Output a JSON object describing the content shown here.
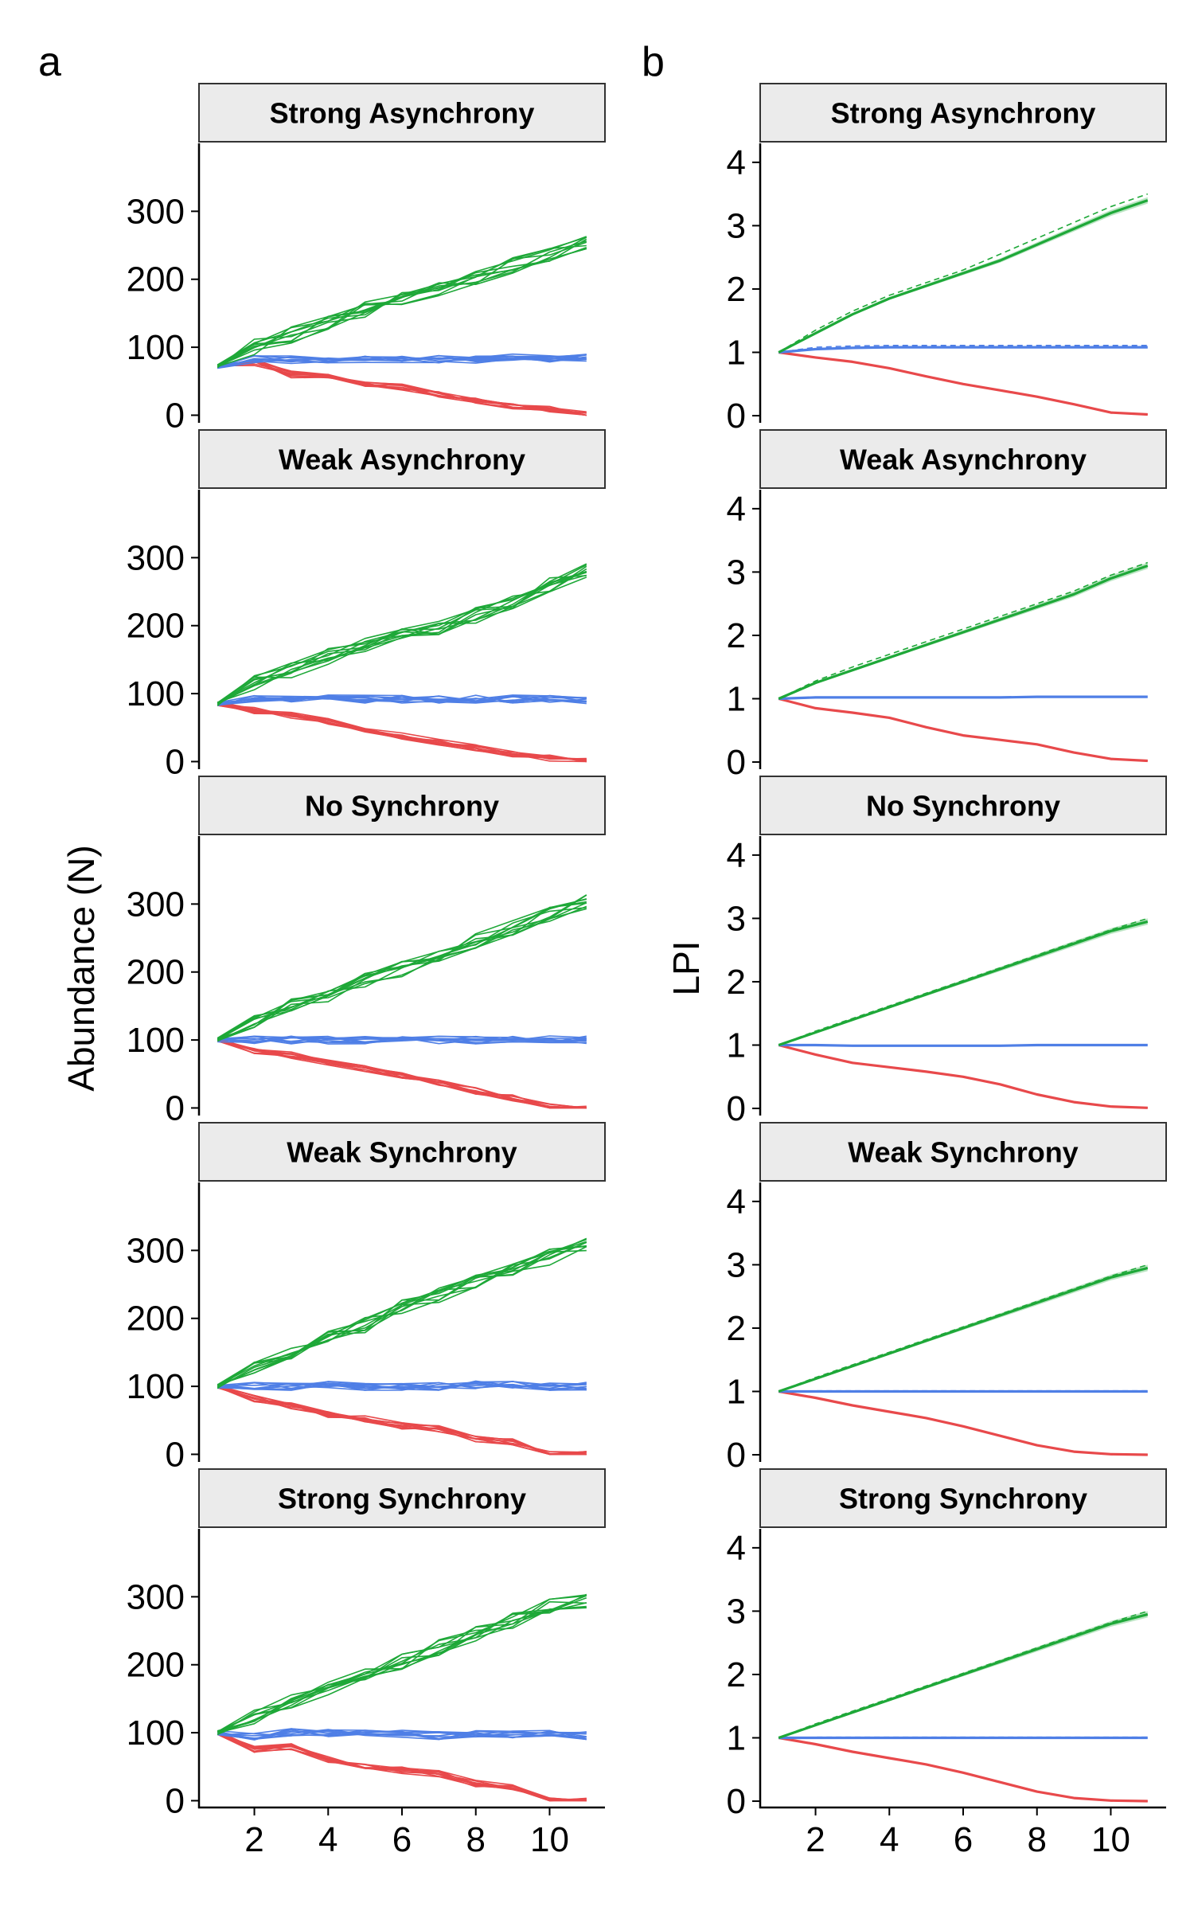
{
  "figure": {
    "panel_a_letter": "a",
    "panel_b_letter": "b",
    "ylabel_a": "Abundance (N)",
    "ylabel_b": "LPI"
  },
  "colors": {
    "decline": "#E8494B",
    "stable": "#4F7FE6",
    "increase": "#1EA838",
    "strip_bg": "#EBEBEB"
  },
  "facets": [
    "Strong Asynchrony",
    "Weak Asynchrony",
    "No Synchrony",
    "Weak Synchrony",
    "Strong Synchrony"
  ],
  "chart_data": [
    {
      "panel": "a",
      "type": "line",
      "ylabel": "Abundance (N)",
      "xlim": [
        0.5,
        11.5
      ],
      "ylim": [
        -10,
        400
      ],
      "xticks": [
        2,
        4,
        6,
        8,
        10
      ],
      "yticks": [
        0,
        100,
        200,
        300
      ],
      "x": [
        1,
        2,
        3,
        4,
        5,
        6,
        7,
        8,
        9,
        10,
        11
      ],
      "replicates_per_group": 10,
      "facets": [
        {
          "title": "Strong Asynchrony",
          "series": [
            {
              "group": "decline",
              "mean": [
                72,
                78,
                60,
                58,
                45,
                42,
                30,
                22,
                12,
                8,
                0
              ]
            },
            {
              "group": "stable",
              "mean": [
                72,
                82,
                82,
                82,
                82,
                82,
                82,
                82,
                84,
                84,
                84
              ]
            },
            {
              "group": "increase",
              "mean": [
                72,
                100,
                118,
                138,
                155,
                170,
                185,
                200,
                220,
                238,
                255
              ]
            }
          ]
        },
        {
          "title": "Weak Asynchrony",
          "series": [
            {
              "group": "decline",
              "mean": [
                85,
                75,
                68,
                60,
                48,
                38,
                28,
                20,
                12,
                5,
                0
              ]
            },
            {
              "group": "stable",
              "mean": [
                85,
                92,
                90,
                92,
                92,
                92,
                92,
                92,
                92,
                92,
                90
              ]
            },
            {
              "group": "increase",
              "mean": [
                85,
                115,
                135,
                155,
                170,
                185,
                198,
                215,
                235,
                260,
                280
              ]
            }
          ]
        },
        {
          "title": "No Synchrony",
          "series": [
            {
              "group": "decline",
              "mean": [
                100,
                85,
                78,
                68,
                58,
                48,
                38,
                25,
                15,
                2,
                0
              ]
            },
            {
              "group": "stable",
              "mean": [
                100,
                100,
                100,
                100,
                100,
                100,
                100,
                100,
                102,
                100,
                100
              ]
            },
            {
              "group": "increase",
              "mean": [
                100,
                130,
                150,
                168,
                188,
                205,
                222,
                245,
                265,
                285,
                305
              ]
            }
          ]
        },
        {
          "title": "Weak Synchrony",
          "series": [
            {
              "group": "decline",
              "mean": [
                100,
                82,
                72,
                58,
                52,
                42,
                38,
                22,
                18,
                0,
                0
              ]
            },
            {
              "group": "stable",
              "mean": [
                100,
                100,
                100,
                102,
                100,
                100,
                100,
                102,
                102,
                100,
                100
              ]
            },
            {
              "group": "increase",
              "mean": [
                100,
                130,
                150,
                170,
                190,
                215,
                235,
                255,
                275,
                290,
                310
              ]
            }
          ]
        },
        {
          "title": "Strong Synchrony",
          "series": [
            {
              "group": "decline",
              "mean": [
                100,
                75,
                80,
                60,
                50,
                45,
                40,
                25,
                20,
                0,
                0
              ]
            },
            {
              "group": "stable",
              "mean": [
                100,
                95,
                100,
                100,
                98,
                98,
                96,
                98,
                98,
                98,
                96
              ]
            },
            {
              "group": "increase",
              "mean": [
                100,
                125,
                145,
                165,
                185,
                205,
                225,
                245,
                265,
                285,
                295
              ]
            }
          ]
        }
      ]
    },
    {
      "panel": "b",
      "type": "line",
      "ylabel": "LPI",
      "xlim": [
        0.5,
        11.5
      ],
      "ylim": [
        -0.1,
        4.3
      ],
      "xticks": [
        2,
        4,
        6,
        8,
        10
      ],
      "yticks": [
        0,
        1,
        2,
        3,
        4
      ],
      "x": [
        1,
        2,
        3,
        4,
        5,
        6,
        7,
        8,
        9,
        10,
        11
      ],
      "facets": [
        {
          "title": "Strong Asynchrony",
          "series": [
            {
              "group": "decline",
              "lpi": [
                1,
                0.92,
                0.85,
                0.75,
                0.62,
                0.5,
                0.4,
                0.3,
                0.18,
                0.05,
                0.02
              ],
              "expected": [
                1,
                0.92,
                0.85,
                0.75,
                0.62,
                0.5,
                0.4,
                0.3,
                0.18,
                0.05,
                0.02
              ]
            },
            {
              "group": "stable",
              "lpi": [
                1,
                1.05,
                1.07,
                1.08,
                1.08,
                1.08,
                1.08,
                1.08,
                1.08,
                1.08,
                1.08
              ],
              "expected": [
                1,
                1.08,
                1.1,
                1.11,
                1.11,
                1.11,
                1.11,
                1.11,
                1.11,
                1.11,
                1.11
              ]
            },
            {
              "group": "increase",
              "lpi": [
                1,
                1.3,
                1.6,
                1.85,
                2.05,
                2.25,
                2.45,
                2.7,
                2.95,
                3.2,
                3.4
              ],
              "expected": [
                1,
                1.35,
                1.65,
                1.9,
                2.1,
                2.3,
                2.55,
                2.8,
                3.05,
                3.3,
                3.5
              ]
            }
          ]
        },
        {
          "title": "Weak Asynchrony",
          "series": [
            {
              "group": "decline",
              "lpi": [
                1,
                0.85,
                0.78,
                0.7,
                0.55,
                0.42,
                0.35,
                0.28,
                0.15,
                0.05,
                0.02
              ],
              "expected": [
                1,
                0.85,
                0.78,
                0.7,
                0.55,
                0.42,
                0.35,
                0.28,
                0.15,
                0.05,
                0.02
              ]
            },
            {
              "group": "stable",
              "lpi": [
                1,
                1.02,
                1.02,
                1.02,
                1.02,
                1.02,
                1.02,
                1.03,
                1.03,
                1.03,
                1.03
              ],
              "expected": [
                1,
                1.02,
                1.02,
                1.02,
                1.02,
                1.02,
                1.02,
                1.03,
                1.03,
                1.03,
                1.03
              ]
            },
            {
              "group": "increase",
              "lpi": [
                1,
                1.25,
                1.45,
                1.65,
                1.85,
                2.05,
                2.25,
                2.45,
                2.65,
                2.9,
                3.1
              ],
              "expected": [
                1,
                1.28,
                1.5,
                1.7,
                1.9,
                2.1,
                2.3,
                2.5,
                2.7,
                2.95,
                3.15
              ]
            }
          ]
        },
        {
          "title": "No Synchrony",
          "series": [
            {
              "group": "decline",
              "lpi": [
                1,
                0.85,
                0.72,
                0.65,
                0.58,
                0.5,
                0.38,
                0.22,
                0.1,
                0.03,
                0.01
              ],
              "expected": [
                1,
                0.85,
                0.72,
                0.65,
                0.58,
                0.5,
                0.38,
                0.22,
                0.1,
                0.03,
                0.01
              ]
            },
            {
              "group": "stable",
              "lpi": [
                1,
                1,
                0.99,
                0.99,
                0.99,
                0.99,
                0.99,
                1,
                1,
                1,
                1
              ],
              "expected": [
                1,
                1,
                0.99,
                0.99,
                0.99,
                0.99,
                0.99,
                1,
                1,
                1,
                1
              ]
            },
            {
              "group": "increase",
              "lpi": [
                1,
                1.2,
                1.4,
                1.6,
                1.8,
                2.0,
                2.2,
                2.4,
                2.6,
                2.8,
                2.95
              ],
              "expected": [
                1,
                1.22,
                1.42,
                1.62,
                1.82,
                2.02,
                2.22,
                2.42,
                2.62,
                2.82,
                3.0
              ]
            }
          ]
        },
        {
          "title": "Weak Synchrony",
          "series": [
            {
              "group": "decline",
              "lpi": [
                1,
                0.9,
                0.78,
                0.68,
                0.58,
                0.45,
                0.3,
                0.15,
                0.05,
                0.01,
                0.0
              ],
              "expected": [
                1,
                0.9,
                0.78,
                0.68,
                0.58,
                0.45,
                0.3,
                0.15,
                0.05,
                0.01,
                0.0
              ]
            },
            {
              "group": "stable",
              "lpi": [
                1,
                1,
                1,
                1,
                1,
                1,
                1,
                1,
                1,
                1,
                1
              ],
              "expected": [
                1,
                1.01,
                1.01,
                1.01,
                1.01,
                1.01,
                1.01,
                1.01,
                1.01,
                1.01,
                1.01
              ]
            },
            {
              "group": "increase",
              "lpi": [
                1,
                1.2,
                1.4,
                1.6,
                1.8,
                2.0,
                2.2,
                2.4,
                2.6,
                2.8,
                2.95
              ],
              "expected": [
                1,
                1.22,
                1.42,
                1.62,
                1.82,
                2.02,
                2.22,
                2.42,
                2.62,
                2.82,
                3.0
              ]
            }
          ]
        },
        {
          "title": "Strong Synchrony",
          "series": [
            {
              "group": "decline",
              "lpi": [
                1,
                0.9,
                0.78,
                0.68,
                0.58,
                0.45,
                0.3,
                0.15,
                0.05,
                0.01,
                0.0
              ],
              "expected": [
                1,
                0.9,
                0.78,
                0.68,
                0.58,
                0.45,
                0.3,
                0.15,
                0.05,
                0.01,
                0.0
              ]
            },
            {
              "group": "stable",
              "lpi": [
                1,
                1,
                1,
                1,
                1,
                1,
                1,
                1,
                1,
                1,
                1
              ],
              "expected": [
                1,
                1.01,
                1.01,
                1.01,
                1.01,
                1.01,
                1.01,
                1.01,
                1.01,
                1.01,
                1.01
              ]
            },
            {
              "group": "increase",
              "lpi": [
                1,
                1.2,
                1.4,
                1.6,
                1.8,
                2.0,
                2.2,
                2.4,
                2.6,
                2.8,
                2.95
              ],
              "expected": [
                1,
                1.22,
                1.42,
                1.62,
                1.82,
                2.02,
                2.22,
                2.42,
                2.62,
                2.82,
                3.0
              ]
            }
          ]
        }
      ]
    }
  ]
}
